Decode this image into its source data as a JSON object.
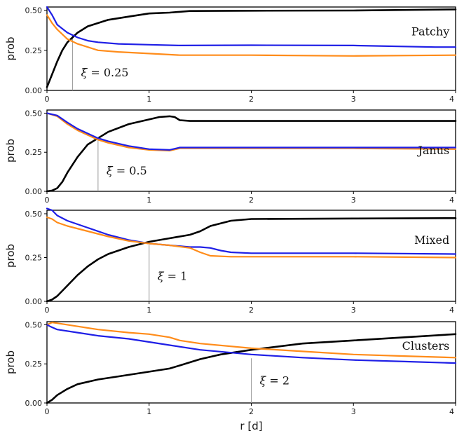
{
  "chart_data": [
    {
      "type": "line",
      "panel_label": "Patchy",
      "annotation": {
        "symbol": "ξ",
        "text": " = 0.25",
        "x": 0.25
      },
      "ylabel": "prob",
      "xlim": [
        0,
        4
      ],
      "ylim": [
        0,
        0.52
      ],
      "yticks": [
        "0.00",
        "0.25",
        "0.50"
      ],
      "xticks": [
        "0",
        "1",
        "2",
        "3",
        "4"
      ],
      "colors": {
        "blue": "#1f1fe6",
        "orange": "#ff8c1a",
        "black": "#000000"
      },
      "series": [
        {
          "color": "black",
          "x": [
            0,
            0.05,
            0.1,
            0.15,
            0.2,
            0.25,
            0.3,
            0.4,
            0.5,
            0.6,
            0.8,
            1.0,
            1.2,
            1.4,
            2.0,
            3.0,
            4.0
          ],
          "y": [
            0.02,
            0.1,
            0.18,
            0.25,
            0.3,
            0.33,
            0.36,
            0.4,
            0.42,
            0.44,
            0.46,
            0.48,
            0.485,
            0.495,
            0.497,
            0.498,
            0.505
          ]
        },
        {
          "color": "blue",
          "x": [
            0,
            0.05,
            0.1,
            0.2,
            0.3,
            0.4,
            0.5,
            0.7,
            1.0,
            1.3,
            2.0,
            3.0,
            3.8,
            4.0
          ],
          "y": [
            0.52,
            0.47,
            0.41,
            0.36,
            0.33,
            0.31,
            0.3,
            0.29,
            0.285,
            0.28,
            0.282,
            0.28,
            0.27,
            0.27
          ]
        },
        {
          "color": "orange",
          "x": [
            0,
            0.05,
            0.1,
            0.2,
            0.3,
            0.4,
            0.5,
            0.7,
            1.0,
            1.3,
            2.0,
            3.0,
            4.0
          ],
          "y": [
            0.47,
            0.42,
            0.38,
            0.32,
            0.29,
            0.27,
            0.25,
            0.24,
            0.23,
            0.22,
            0.22,
            0.215,
            0.22
          ]
        }
      ]
    },
    {
      "type": "line",
      "panel_label": "Janus",
      "annotation": {
        "symbol": "ξ",
        "text": " = 0.5",
        "x": 0.5
      },
      "ylabel": "prob",
      "xlim": [
        0,
        4
      ],
      "ylim": [
        0,
        0.52
      ],
      "yticks": [
        "0.00",
        "0.25",
        "0.50"
      ],
      "xticks": [
        "0",
        "1",
        "2",
        "3",
        "4"
      ],
      "colors": {
        "blue": "#1f1fe6",
        "orange": "#ff8c1a",
        "black": "#000000"
      },
      "series": [
        {
          "color": "black",
          "x": [
            0,
            0.05,
            0.1,
            0.15,
            0.2,
            0.3,
            0.4,
            0.5,
            0.6,
            0.8,
            1.0,
            1.1,
            1.2,
            1.25,
            1.3,
            1.4,
            2.0,
            3.0,
            4.0
          ],
          "y": [
            0,
            0.005,
            0.02,
            0.06,
            0.12,
            0.22,
            0.3,
            0.34,
            0.38,
            0.43,
            0.46,
            0.475,
            0.48,
            0.475,
            0.455,
            0.45,
            0.45,
            0.45,
            0.45
          ]
        },
        {
          "color": "orange",
          "x": [
            0,
            0.1,
            0.2,
            0.3,
            0.4,
            0.5,
            0.6,
            0.8,
            1.0,
            1.2,
            1.3,
            1.4,
            2.0,
            3.0,
            4.0
          ],
          "y": [
            0.5,
            0.48,
            0.43,
            0.39,
            0.36,
            0.33,
            0.31,
            0.28,
            0.265,
            0.26,
            0.275,
            0.275,
            0.275,
            0.275,
            0.27
          ]
        },
        {
          "color": "blue",
          "x": [
            0,
            0.1,
            0.2,
            0.3,
            0.4,
            0.5,
            0.6,
            0.8,
            1.0,
            1.2,
            1.3,
            1.4,
            2.0,
            3.0,
            4.0
          ],
          "y": [
            0.5,
            0.485,
            0.44,
            0.4,
            0.37,
            0.34,
            0.32,
            0.29,
            0.27,
            0.265,
            0.28,
            0.28,
            0.28,
            0.28,
            0.28
          ]
        }
      ]
    },
    {
      "type": "line",
      "panel_label": "Mixed",
      "annotation": {
        "symbol": "ξ",
        "text": " = 1",
        "x": 1.0
      },
      "ylabel": "prob",
      "xlim": [
        0,
        4
      ],
      "ylim": [
        0,
        0.52
      ],
      "yticks": [
        "0.00",
        "0.25",
        "0.50"
      ],
      "xticks": [
        "0",
        "1",
        "2",
        "3",
        "4"
      ],
      "colors": {
        "blue": "#1f1fe6",
        "orange": "#ff8c1a",
        "black": "#000000"
      },
      "series": [
        {
          "color": "black",
          "x": [
            0,
            0.05,
            0.1,
            0.2,
            0.3,
            0.4,
            0.5,
            0.6,
            0.8,
            1.0,
            1.2,
            1.4,
            1.5,
            1.6,
            1.8,
            2.0,
            3.0,
            4.0
          ],
          "y": [
            0,
            0.01,
            0.03,
            0.09,
            0.15,
            0.2,
            0.24,
            0.27,
            0.31,
            0.34,
            0.36,
            0.38,
            0.4,
            0.43,
            0.46,
            0.47,
            0.473,
            0.475
          ]
        },
        {
          "color": "blue",
          "x": [
            0,
            0.05,
            0.1,
            0.2,
            0.4,
            0.6,
            0.8,
            1.0,
            1.2,
            1.4,
            1.5,
            1.6,
            1.7,
            1.8,
            2.0,
            3.0,
            4.0
          ],
          "y": [
            0.53,
            0.52,
            0.49,
            0.46,
            0.42,
            0.38,
            0.35,
            0.33,
            0.32,
            0.31,
            0.31,
            0.305,
            0.29,
            0.28,
            0.275,
            0.275,
            0.27
          ]
        },
        {
          "color": "orange",
          "x": [
            0,
            0.05,
            0.1,
            0.2,
            0.4,
            0.6,
            0.8,
            1.0,
            1.2,
            1.4,
            1.5,
            1.6,
            1.8,
            2.0,
            3.0,
            4.0
          ],
          "y": [
            0.48,
            0.47,
            0.45,
            0.43,
            0.4,
            0.37,
            0.345,
            0.33,
            0.32,
            0.305,
            0.28,
            0.26,
            0.255,
            0.255,
            0.255,
            0.25
          ]
        }
      ]
    },
    {
      "type": "line",
      "panel_label": "Clusters",
      "annotation": {
        "symbol": "ξ",
        "text": " = 2",
        "x": 2.0
      },
      "ylabel": "prob",
      "xlabel": "r  [d]",
      "xlim": [
        0,
        4
      ],
      "ylim": [
        0,
        0.52
      ],
      "yticks": [
        "0.00",
        "0.25",
        "0.50"
      ],
      "xticks": [
        "0",
        "1",
        "2",
        "3",
        "4"
      ],
      "colors": {
        "blue": "#1f1fe6",
        "orange": "#ff8c1a",
        "black": "#000000"
      },
      "series": [
        {
          "color": "black",
          "x": [
            0,
            0.05,
            0.1,
            0.2,
            0.3,
            0.5,
            0.7,
            1.0,
            1.2,
            1.3,
            1.4,
            1.5,
            1.7,
            2.0,
            2.5,
            3.0,
            3.5,
            4.0
          ],
          "y": [
            0,
            0.02,
            0.05,
            0.09,
            0.12,
            0.15,
            0.17,
            0.2,
            0.22,
            0.24,
            0.26,
            0.28,
            0.31,
            0.34,
            0.38,
            0.4,
            0.42,
            0.44
          ]
        },
        {
          "color": "orange",
          "x": [
            0,
            0.05,
            0.1,
            0.3,
            0.5,
            0.8,
            1.0,
            1.2,
            1.3,
            1.5,
            2.0,
            2.5,
            3.0,
            3.5,
            4.0
          ],
          "y": [
            0.5,
            0.515,
            0.51,
            0.49,
            0.47,
            0.45,
            0.44,
            0.42,
            0.4,
            0.38,
            0.35,
            0.33,
            0.31,
            0.3,
            0.29
          ]
        },
        {
          "color": "blue",
          "x": [
            0,
            0.03,
            0.1,
            0.3,
            0.5,
            0.8,
            1.0,
            1.2,
            1.5,
            2.0,
            2.5,
            3.0,
            3.5,
            4.0
          ],
          "y": [
            0.5,
            0.49,
            0.47,
            0.45,
            0.43,
            0.41,
            0.39,
            0.37,
            0.34,
            0.31,
            0.29,
            0.275,
            0.265,
            0.255
          ]
        }
      ]
    }
  ]
}
